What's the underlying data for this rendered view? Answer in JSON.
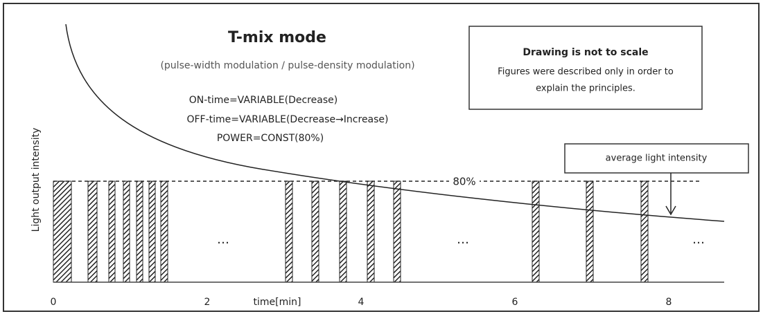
{
  "title": "T-mix mode",
  "subtitle": "(pulse-width modulation / pulse-density modulation)",
  "conditions": [
    "ON-time=VARIABLE(Decrease)",
    "OFF-time=VARIABLE(Decrease→Increase)",
    "POWER=CONST(80%)"
  ],
  "note": {
    "heading": "Drawing is not to scale",
    "lines": [
      "Figures were described only in order to",
      "explain the principles."
    ]
  },
  "average_label": "average light intensity",
  "level_label": "80%",
  "ellipses": [
    "…",
    "…",
    "…"
  ],
  "x_axis_label": "time[min]",
  "y_axis_label": "Light output intensity",
  "x_tick_labels": [
    "0",
    "2",
    "4",
    "6",
    "8"
  ]
}
